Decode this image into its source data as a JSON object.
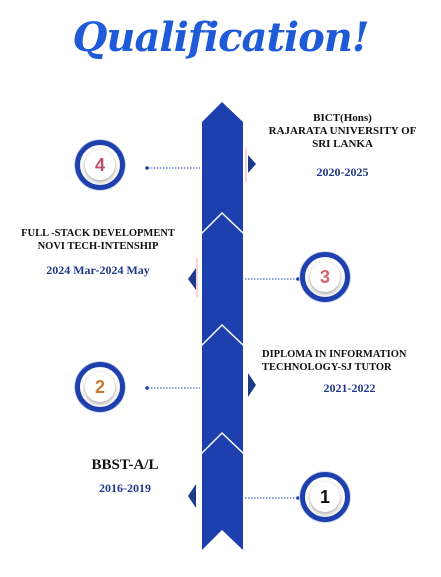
{
  "title": "Qualification!",
  "colors": {
    "primary": "#1e40af",
    "title": "#1f5bd6",
    "date": "#1f3a8a",
    "num_4": "#c0506a",
    "num_3": "#d4636a",
    "num_2": "#c77a34",
    "num_1": "#111111"
  },
  "items": [
    {
      "number": "4",
      "lines": [
        "BICT(Hons)",
        "RAJARATA UNIVERSITY OF",
        "SRI LANKA"
      ],
      "date": "2020-2025"
    },
    {
      "number": "3",
      "lines": [
        "FULL -STACK DEVELOPMENT",
        "NOVI TECH-INTENSHIP"
      ],
      "date": "2024 Mar-2024 May"
    },
    {
      "number": "2",
      "lines": [
        "DIPLOMA IN  INFORMATION",
        "TECHNOLOGY-SJ TUTOR"
      ],
      "date": "2021-2022"
    },
    {
      "number": "1",
      "lines": [
        "BBST-A/L"
      ],
      "date": "2016-2019"
    }
  ]
}
